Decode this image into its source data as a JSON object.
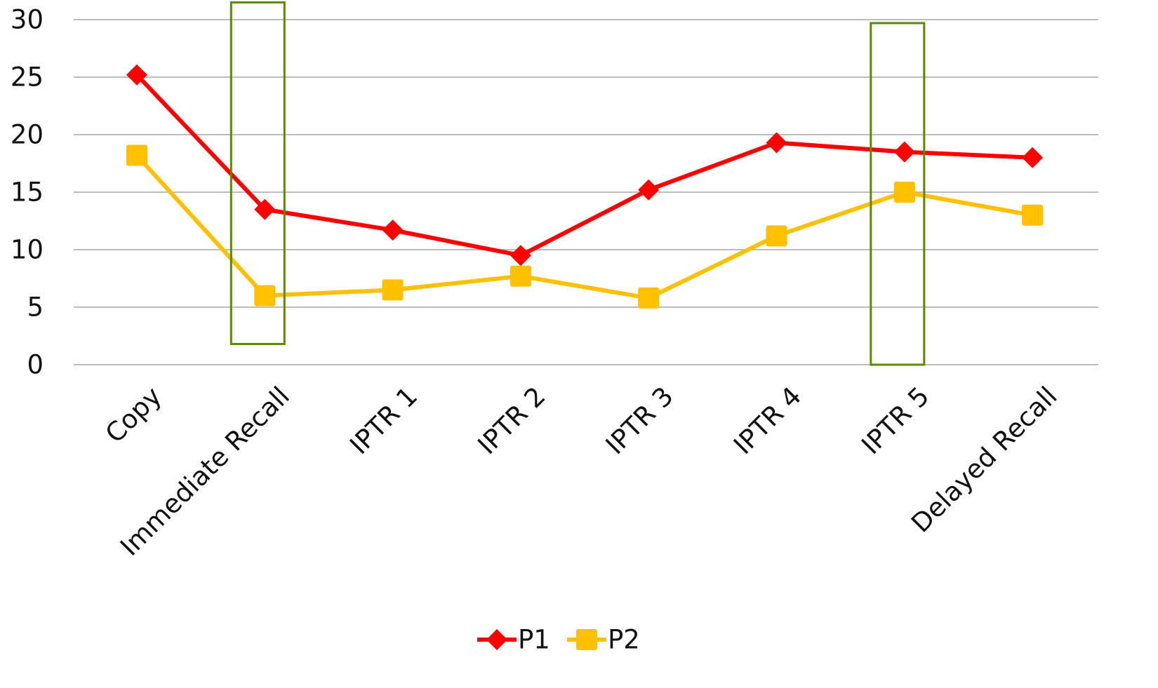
{
  "chart_data": {
    "type": "line",
    "title": "",
    "xlabel": "",
    "ylabel": "",
    "categories": [
      "Copy",
      "Immediate Recall",
      "IPTR 1",
      "IPTR 2",
      "IPTR 3",
      "IPTR 4",
      "IPTR 5",
      "Delayed Recall"
    ],
    "ylim": [
      0,
      30
    ],
    "yticks": [
      0,
      5,
      10,
      15,
      20,
      25,
      30
    ],
    "grid": true,
    "legend_position": "bottom",
    "series": [
      {
        "name": "P1",
        "color": "#ff0000",
        "marker": "diamond",
        "values": [
          25.2,
          13.5,
          11.7,
          9.5,
          15.2,
          19.3,
          18.5,
          18.0
        ]
      },
      {
        "name": "P2",
        "color": "#ffc000",
        "marker": "square",
        "values": [
          18.2,
          6.0,
          6.5,
          7.7,
          5.8,
          11.2,
          15.0,
          13.0
        ]
      }
    ],
    "highlights": [
      {
        "category": "Immediate Recall",
        "y_range": [
          1.8,
          31.5
        ],
        "color": "#5a8a00"
      },
      {
        "category": "IPTR 5",
        "y_range": [
          0,
          29.7
        ],
        "color": "#5a8a00"
      }
    ]
  }
}
